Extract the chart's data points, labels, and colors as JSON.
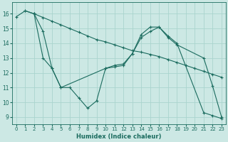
{
  "xlabel": "Humidex (Indice chaleur)",
  "bg_color": "#cce8e4",
  "line_color": "#1a6b5e",
  "grid_color": "#aad4ce",
  "xlim": [
    -0.5,
    23.5
  ],
  "ylim": [
    8.5,
    16.8
  ],
  "xticks": [
    0,
    1,
    2,
    3,
    4,
    5,
    6,
    7,
    8,
    9,
    10,
    11,
    12,
    13,
    14,
    15,
    16,
    17,
    18,
    19,
    20,
    21,
    22,
    23
  ],
  "yticks": [
    9,
    10,
    11,
    12,
    13,
    14,
    15,
    16
  ],
  "line1_x": [
    0,
    1,
    2,
    3,
    4,
    5,
    6,
    7,
    8,
    9,
    10,
    11,
    12,
    13,
    14,
    15,
    16,
    17,
    18,
    19,
    20,
    21,
    22,
    23
  ],
  "line1_y": [
    15.8,
    16.2,
    16.0,
    15.75,
    15.5,
    15.25,
    15.0,
    14.75,
    14.5,
    14.25,
    14.1,
    13.9,
    13.7,
    13.5,
    13.4,
    13.25,
    13.1,
    12.9,
    12.7,
    12.5,
    12.3,
    12.1,
    11.9,
    11.7
  ],
  "line2_x": [
    2,
    3,
    4,
    5,
    6,
    7,
    8,
    9,
    10,
    11,
    12,
    13,
    14,
    15,
    16,
    17,
    18,
    21,
    22,
    23
  ],
  "line2_y": [
    16.0,
    13.0,
    12.3,
    11.0,
    11.0,
    10.3,
    9.6,
    10.1,
    12.3,
    12.4,
    12.5,
    13.3,
    14.4,
    14.8,
    15.1,
    14.4,
    13.9,
    13.0,
    11.1,
    9.0
  ],
  "line3_x": [
    1,
    2,
    3,
    4,
    5,
    10,
    11,
    12,
    13,
    14,
    15,
    16,
    17,
    18,
    21,
    22,
    23
  ],
  "line3_y": [
    16.2,
    16.0,
    14.8,
    12.3,
    11.0,
    12.3,
    12.5,
    12.6,
    13.3,
    14.6,
    15.1,
    15.1,
    14.5,
    14.0,
    9.3,
    9.1,
    8.9
  ]
}
